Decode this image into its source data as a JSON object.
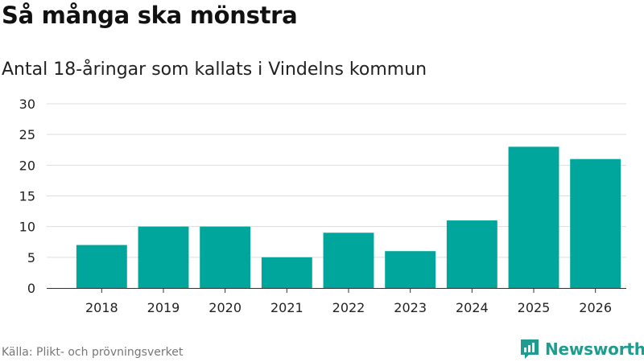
{
  "header": {
    "title": "Så många ska mönstra",
    "subtitle": "Antal 18-åringar som kallats i Vindelns kommun"
  },
  "footer": {
    "source": "Källa: Plikt- och prövningsverket",
    "brand": "Newsworthy",
    "brand_icon": "newsworthy-logo-icon"
  },
  "colors": {
    "bar": "#00a59b",
    "grid": "#dddddd",
    "axis": "#333333",
    "tick_text": "#222222",
    "brand": "#1f9c8f"
  },
  "chart_data": {
    "type": "bar",
    "categories": [
      "2018",
      "2019",
      "2020",
      "2021",
      "2022",
      "2023",
      "2024",
      "2025",
      "2026"
    ],
    "values": [
      7,
      10,
      10,
      5,
      9,
      6,
      11,
      23,
      21
    ],
    "ylim": [
      0,
      30
    ],
    "yticks": [
      "0",
      "5",
      "10",
      "15",
      "20",
      "25",
      "30"
    ],
    "grid": true,
    "legend": "none"
  }
}
